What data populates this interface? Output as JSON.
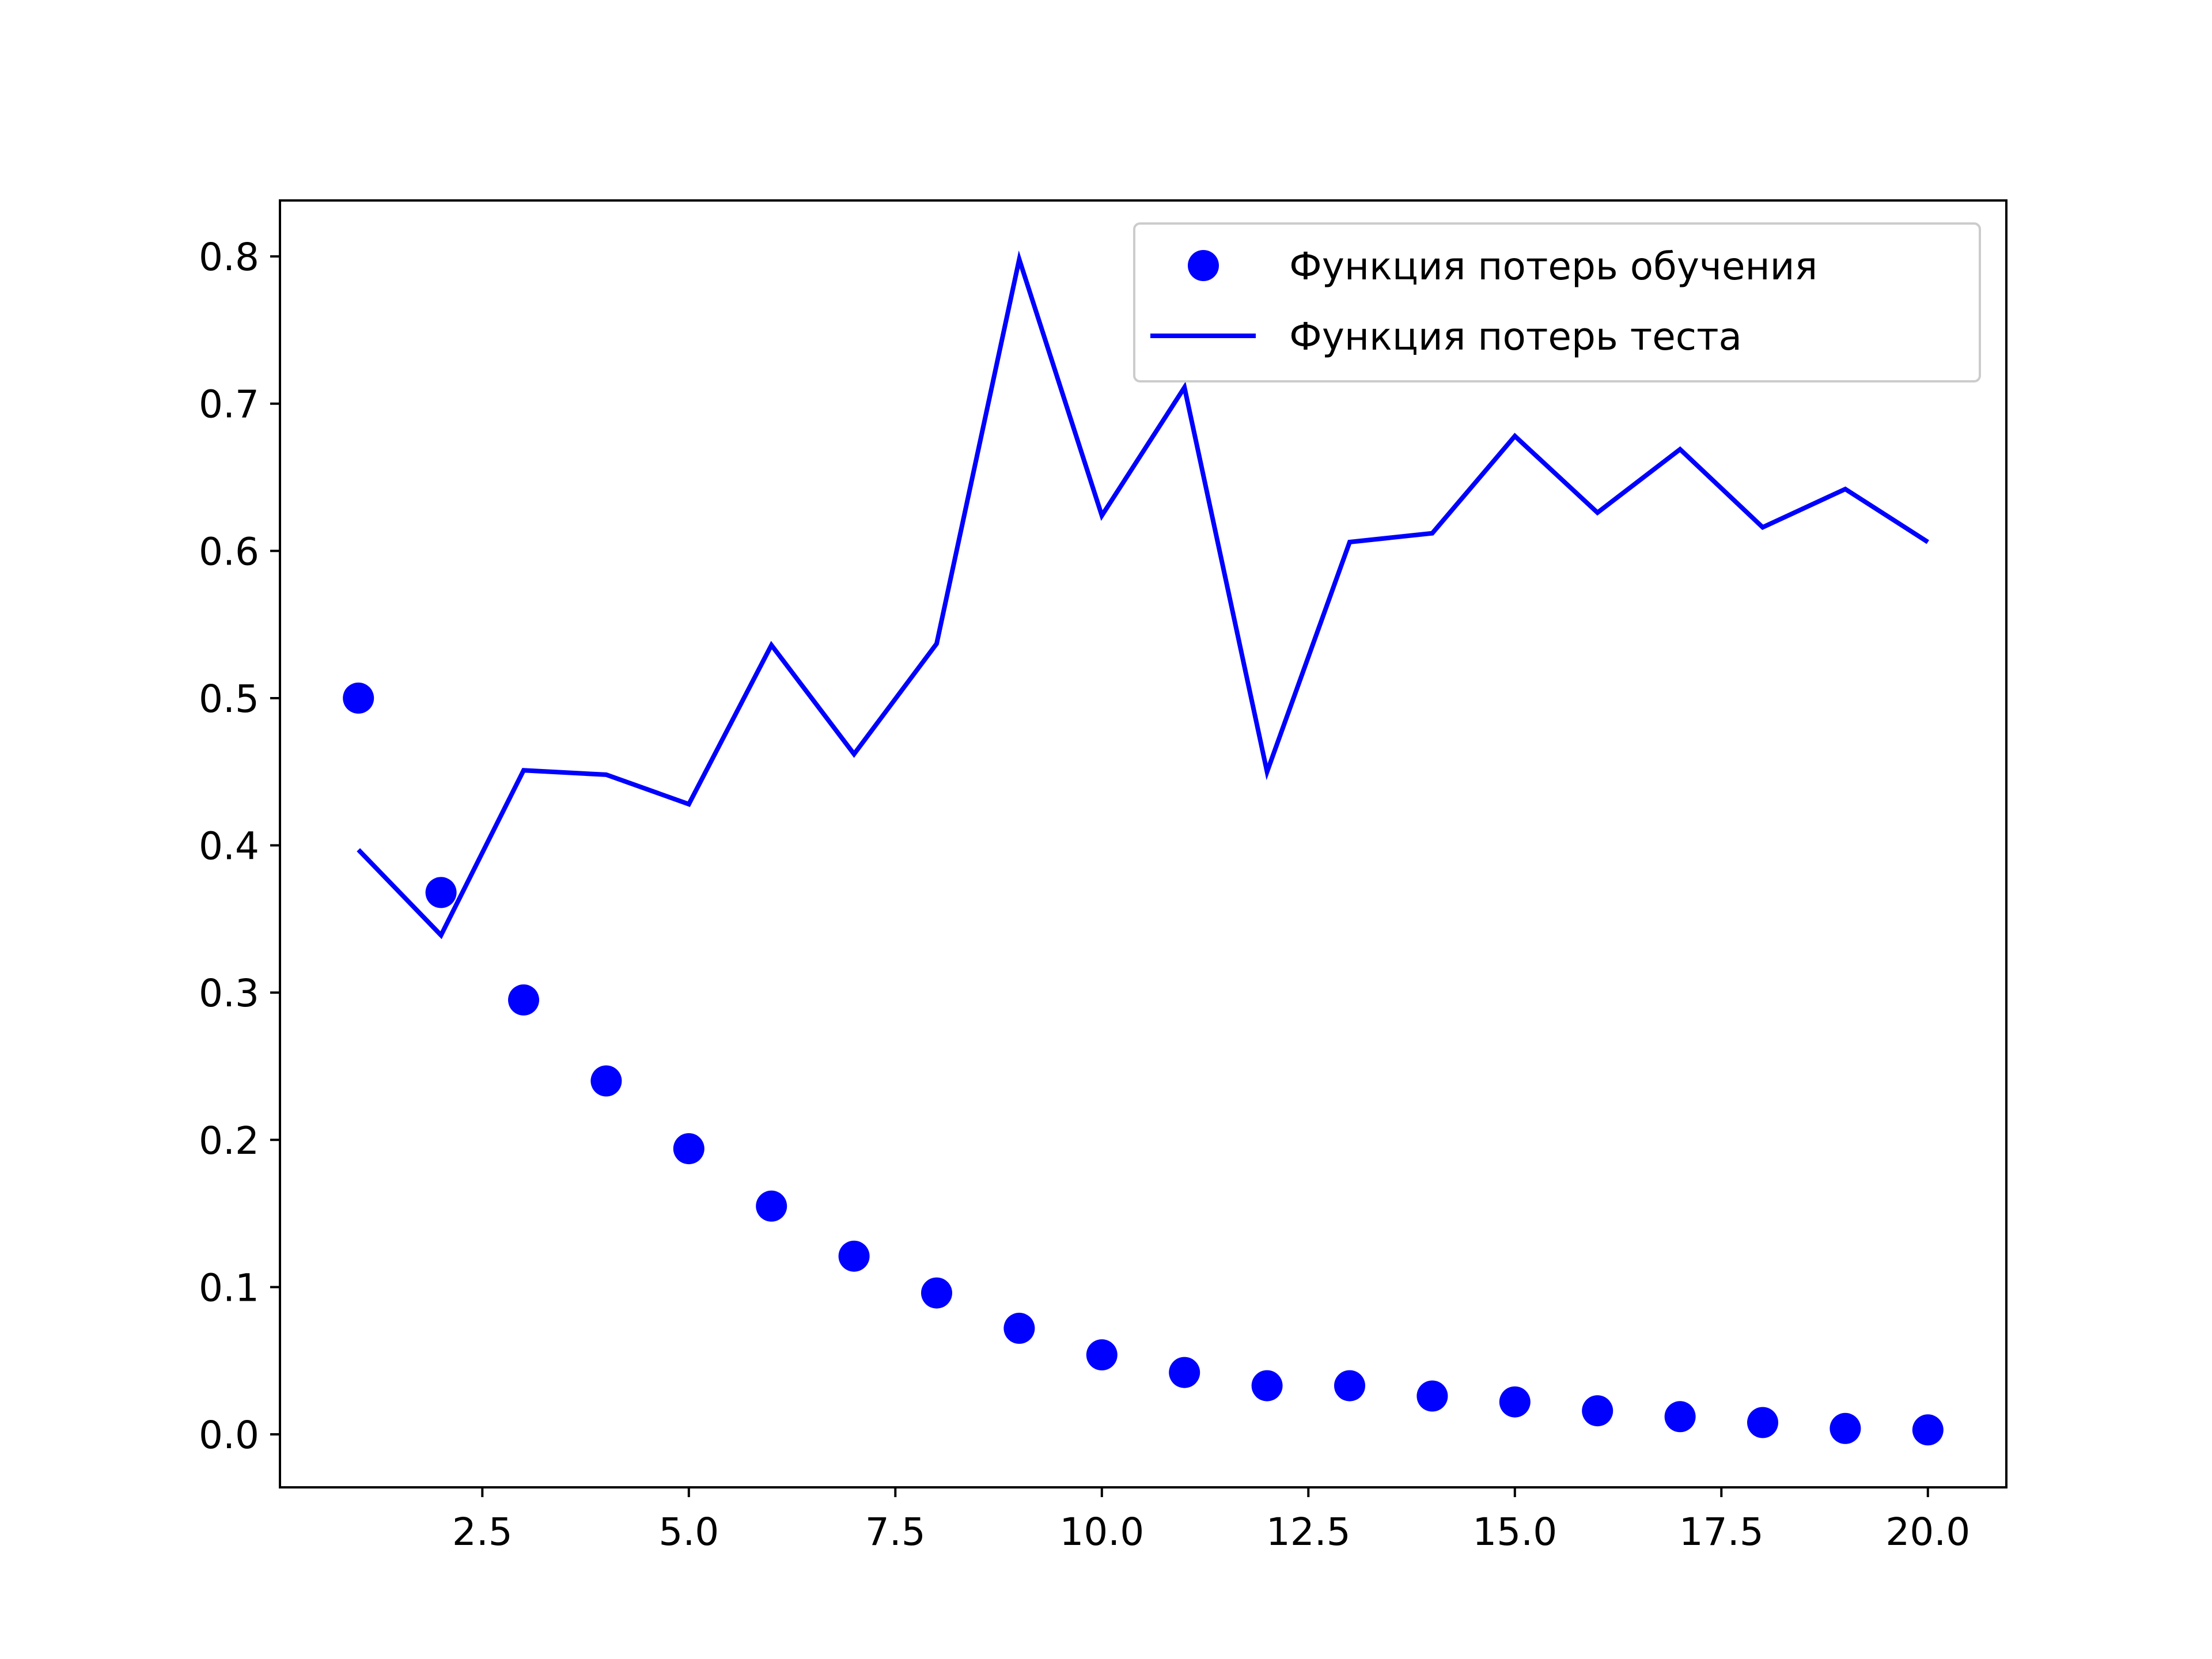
{
  "chart_data": {
    "type": "line",
    "title": "",
    "xlabel": "",
    "ylabel": "",
    "xlim": [
      0.05,
      20.95
    ],
    "ylim": [
      -0.036,
      0.838
    ],
    "xticks": [
      2.5,
      5.0,
      7.5,
      10.0,
      12.5,
      15.0,
      17.5,
      20.0
    ],
    "xtick_labels": [
      "2.5",
      "5.0",
      "7.5",
      "10.0",
      "12.5",
      "15.0",
      "17.5",
      "20.0"
    ],
    "yticks": [
      0.0,
      0.1,
      0.2,
      0.3,
      0.4,
      0.5,
      0.6,
      0.7,
      0.8
    ],
    "ytick_labels": [
      "0.0",
      "0.1",
      "0.2",
      "0.3",
      "0.4",
      "0.5",
      "0.6",
      "0.7",
      "0.8"
    ],
    "grid": false,
    "legend_position": "top-right",
    "x": [
      1,
      2,
      3,
      4,
      5,
      6,
      7,
      8,
      9,
      10,
      11,
      12,
      13,
      14,
      15,
      16,
      17,
      18,
      19,
      20
    ],
    "series": [
      {
        "name": "Функция потерь обучения",
        "style": "markers",
        "color": "#0000ff",
        "values": [
          0.5,
          0.368,
          0.295,
          0.24,
          0.194,
          0.155,
          0.121,
          0.096,
          0.072,
          0.054,
          0.042,
          0.033,
          0.033,
          0.026,
          0.022,
          0.016,
          0.012,
          0.008,
          0.004,
          0.003
        ]
      },
      {
        "name": "Функция потерь теста",
        "style": "line",
        "color": "#0000ff",
        "values": [
          0.397,
          0.339,
          0.451,
          0.448,
          0.428,
          0.536,
          0.462,
          0.537,
          0.798,
          0.624,
          0.711,
          0.45,
          0.606,
          0.612,
          0.678,
          0.626,
          0.669,
          0.616,
          0.642,
          0.606
        ]
      }
    ]
  }
}
